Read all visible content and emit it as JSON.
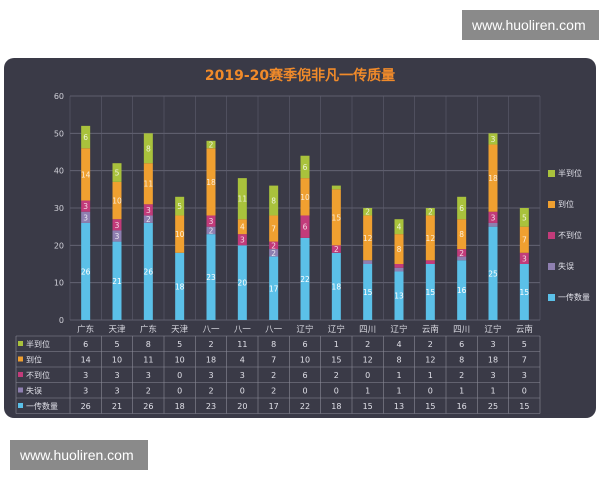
{
  "watermark_text": "www.huoliren.com",
  "chart_data": {
    "type": "bar",
    "stacked": true,
    "title": "2019-20赛季倪非凡一传质量",
    "categories": [
      "广东",
      "天津",
      "广东",
      "天津",
      "八一",
      "八一",
      "八一",
      "辽宁",
      "辽宁",
      "四川",
      "辽宁",
      "云南",
      "四川",
      "辽宁",
      "云南"
    ],
    "ylim": [
      0,
      60
    ],
    "yticks": [
      0,
      10,
      20,
      30,
      40,
      50,
      60
    ],
    "grid": true,
    "legend_position": "right",
    "series": [
      {
        "name": "一传数量",
        "color": "#5bc0e8",
        "values": [
          26,
          21,
          26,
          18,
          23,
          20,
          17,
          22,
          18,
          15,
          13,
          15,
          16,
          25,
          15
        ]
      },
      {
        "name": "失误",
        "color": "#8e7fb0",
        "values": [
          3,
          3,
          2,
          0,
          2,
          0,
          2,
          0,
          0,
          1,
          1,
          0,
          1,
          1,
          0
        ]
      },
      {
        "name": "不到位",
        "color": "#c23b7a",
        "values": [
          3,
          3,
          3,
          0,
          3,
          3,
          2,
          6,
          2,
          0,
          1,
          1,
          2,
          3,
          3
        ]
      },
      {
        "name": "到位",
        "color": "#f0a030",
        "values": [
          14,
          10,
          11,
          10,
          18,
          4,
          7,
          10,
          15,
          12,
          8,
          12,
          8,
          18,
          7
        ]
      },
      {
        "name": "半到位",
        "color": "#a9c23c",
        "values": [
          6,
          5,
          8,
          5,
          2,
          11,
          8,
          6,
          1,
          2,
          4,
          2,
          6,
          3,
          5
        ]
      }
    ],
    "table_rows": [
      "半到位",
      "到位",
      "不到位",
      "失误",
      "一传数量"
    ]
  }
}
